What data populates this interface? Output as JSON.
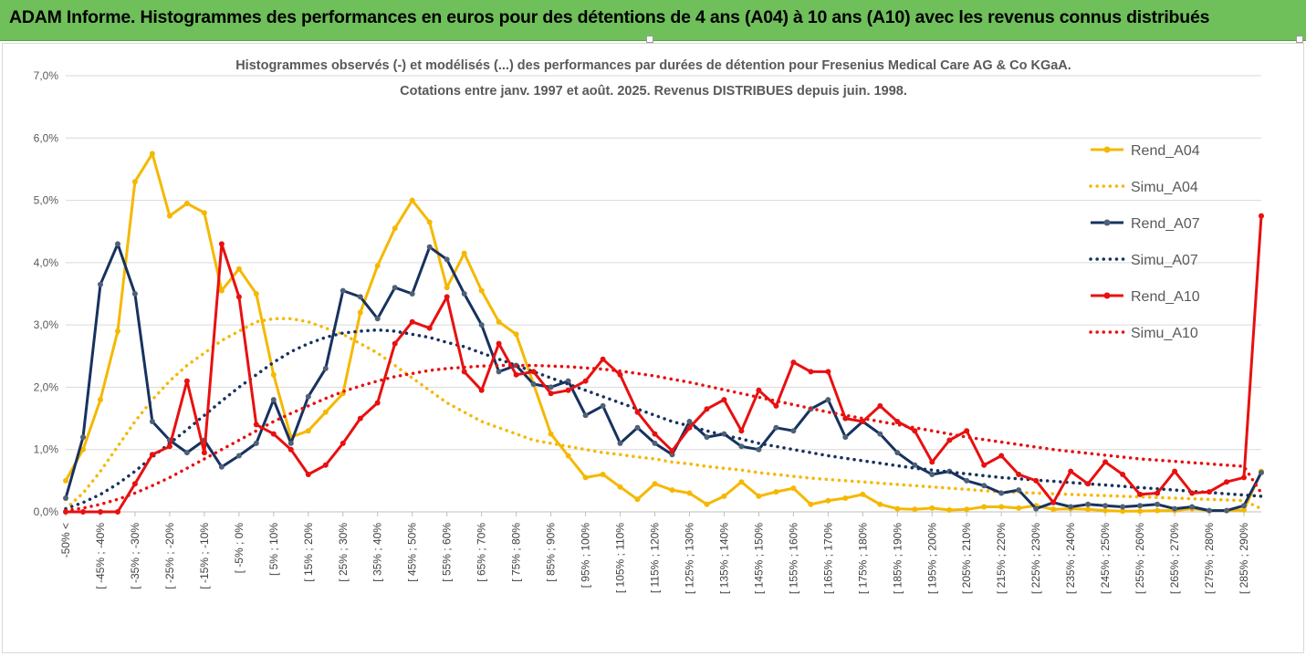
{
  "banner": {
    "title": "ADAM Informe. Histogrammes des performances en euros pour des détentions de 4 ans (A04) à 10 ans (A10) avec les revenus connus distribués"
  },
  "chart_data": {
    "type": "line",
    "title_line1": "Histogrammes observés (-) et modélisés (...) des performances par durées de détention pour Fresenius Medical Care AG & Co KGaA.",
    "title_line2": "Cotations entre janv. 1997 et août. 2025. Revenus DISTRIBUES depuis juin. 1998.",
    "y_ticks": [
      "0,0%",
      "1,0%",
      "2,0%",
      "3,0%",
      "4,0%",
      "5,0%",
      "6,0%",
      "7,0%"
    ],
    "ylim": [
      0,
      7
    ],
    "x_labels": [
      "-50% <",
      "[ -45% ; -40%",
      "[ -35% ; -30%",
      "[ -25% ; -20%",
      "[ -15% ; -10%",
      "[ -5% ; 0%",
      "[ 5% ; 10%",
      "[ 15% ; 20%",
      "[ 25% ; 30%",
      "[ 35% ; 40%",
      "[ 45% ; 50%",
      "[ 55% ; 60%",
      "[ 65% ; 70%",
      "[ 75% ; 80%",
      "[ 85% ; 90%",
      "[ 95% ; 100%",
      "[ 105% ; 110%",
      "[ 115% ; 120%",
      "[ 125% ; 130%",
      "[ 135% ; 140%",
      "[ 145% ; 150%",
      "[ 155% ; 160%",
      "[ 165% ; 170%",
      "[ 175% ; 180%",
      "[ 185% ; 190%",
      "[ 195% ; 200%",
      "[ 205% ; 210%",
      "[ 215% ; 220%",
      "[ 225% ; 230%",
      "[ 235% ; 240%",
      "[ 245% ; 250%",
      "[ 255% ; 260%",
      "[ 265% ; 270%",
      "[ 275% ; 280%",
      "[ 285% ; 290%"
    ],
    "num_points": 70,
    "grid": true,
    "legend_position": "right",
    "series": [
      {
        "name": "Rend_A04",
        "style": "solid",
        "color": "#f5b800",
        "values": [
          0.5,
          1.0,
          1.8,
          2.9,
          5.3,
          5.75,
          4.75,
          4.95,
          4.8,
          3.55,
          3.9,
          3.5,
          2.2,
          1.2,
          1.3,
          1.6,
          1.9,
          3.2,
          3.95,
          4.55,
          5.0,
          4.65,
          3.6,
          4.15,
          3.55,
          3.05,
          2.85,
          2.05,
          1.25,
          0.9,
          0.55,
          0.6,
          0.4,
          0.2,
          0.45,
          0.35,
          0.3,
          0.12,
          0.25,
          0.48,
          0.25,
          0.32,
          0.38,
          0.12,
          0.18,
          0.22,
          0.28,
          0.12,
          0.05,
          0.04,
          0.06,
          0.03,
          0.04,
          0.08,
          0.08,
          0.06,
          0.1,
          0.04,
          0.05,
          0.04,
          0.02,
          0.01,
          0.01,
          0.02,
          0.02,
          0.05,
          0.02,
          0.02,
          0.03,
          0.65
        ]
      },
      {
        "name": "Simu_A04",
        "style": "dotted",
        "color": "#f5b800",
        "values": [
          0.05,
          0.3,
          0.65,
          1.05,
          1.45,
          1.8,
          2.1,
          2.35,
          2.55,
          2.75,
          2.9,
          3.05,
          3.1,
          3.1,
          3.05,
          2.95,
          2.85,
          2.7,
          2.55,
          2.35,
          2.15,
          1.95,
          1.75,
          1.6,
          1.45,
          1.35,
          1.25,
          1.15,
          1.1,
          1.05,
          1.0,
          0.95,
          0.92,
          0.88,
          0.85,
          0.8,
          0.77,
          0.73,
          0.7,
          0.67,
          0.63,
          0.6,
          0.57,
          0.54,
          0.52,
          0.5,
          0.48,
          0.46,
          0.44,
          0.42,
          0.4,
          0.38,
          0.36,
          0.34,
          0.32,
          0.31,
          0.3,
          0.29,
          0.28,
          0.27,
          0.26,
          0.25,
          0.24,
          0.23,
          0.22,
          0.21,
          0.2,
          0.19,
          0.18,
          0.05
        ]
      },
      {
        "name": "Rend_A07",
        "style": "solid",
        "color": "#17325f",
        "values": [
          0.22,
          1.2,
          3.65,
          4.3,
          3.5,
          1.45,
          1.15,
          0.95,
          1.15,
          0.72,
          0.9,
          1.1,
          1.8,
          1.1,
          1.85,
          2.3,
          3.55,
          3.45,
          3.1,
          3.6,
          3.5,
          4.25,
          4.05,
          3.5,
          3.0,
          2.25,
          2.35,
          2.05,
          2.0,
          2.1,
          1.55,
          1.7,
          1.1,
          1.35,
          1.1,
          0.92,
          1.45,
          1.2,
          1.25,
          1.05,
          1.0,
          1.35,
          1.3,
          1.65,
          1.8,
          1.2,
          1.45,
          1.25,
          0.95,
          0.75,
          0.6,
          0.65,
          0.5,
          0.42,
          0.3,
          0.35,
          0.05,
          0.15,
          0.08,
          0.12,
          0.1,
          0.08,
          0.1,
          0.12,
          0.05,
          0.08,
          0.02,
          0.02,
          0.1,
          0.63
        ]
      },
      {
        "name": "Simu_A07",
        "style": "dotted",
        "color": "#17325f",
        "values": [
          0.05,
          0.15,
          0.28,
          0.45,
          0.65,
          0.88,
          1.1,
          1.32,
          1.55,
          1.78,
          2.0,
          2.2,
          2.4,
          2.57,
          2.7,
          2.8,
          2.87,
          2.9,
          2.92,
          2.9,
          2.85,
          2.8,
          2.72,
          2.65,
          2.55,
          2.45,
          2.35,
          2.25,
          2.15,
          2.05,
          1.95,
          1.85,
          1.75,
          1.65,
          1.55,
          1.45,
          1.38,
          1.3,
          1.23,
          1.17,
          1.1,
          1.05,
          1.0,
          0.95,
          0.9,
          0.86,
          0.82,
          0.78,
          0.74,
          0.7,
          0.67,
          0.64,
          0.61,
          0.58,
          0.55,
          0.53,
          0.51,
          0.49,
          0.47,
          0.45,
          0.43,
          0.41,
          0.39,
          0.37,
          0.35,
          0.33,
          0.31,
          0.29,
          0.27,
          0.25
        ]
      },
      {
        "name": "Rend_A10",
        "style": "solid",
        "color": "#e81010",
        "values": [
          0.0,
          0.0,
          0.0,
          0.0,
          0.45,
          0.92,
          1.05,
          2.1,
          0.95,
          4.3,
          3.45,
          1.4,
          1.25,
          1.0,
          0.6,
          0.75,
          1.1,
          1.5,
          1.75,
          2.7,
          3.05,
          2.95,
          3.45,
          2.25,
          1.95,
          2.7,
          2.2,
          2.25,
          1.9,
          1.95,
          2.1,
          2.45,
          2.2,
          1.6,
          1.25,
          0.98,
          1.35,
          1.65,
          1.8,
          1.3,
          1.95,
          1.7,
          2.4,
          2.25,
          2.25,
          1.5,
          1.45,
          1.7,
          1.45,
          1.3,
          0.8,
          1.15,
          1.3,
          0.75,
          0.9,
          0.6,
          0.5,
          0.15,
          0.65,
          0.45,
          0.8,
          0.6,
          0.28,
          0.3,
          0.65,
          0.3,
          0.32,
          0.48,
          0.55,
          4.75
        ]
      },
      {
        "name": "Simu_A10",
        "style": "dotted",
        "color": "#e81010",
        "values": [
          0.02,
          0.06,
          0.12,
          0.2,
          0.3,
          0.42,
          0.55,
          0.7,
          0.85,
          1.0,
          1.15,
          1.3,
          1.45,
          1.58,
          1.7,
          1.82,
          1.93,
          2.02,
          2.1,
          2.17,
          2.22,
          2.27,
          2.3,
          2.32,
          2.34,
          2.35,
          2.35,
          2.35,
          2.34,
          2.33,
          2.31,
          2.29,
          2.26,
          2.22,
          2.18,
          2.13,
          2.08,
          2.02,
          1.96,
          1.9,
          1.84,
          1.78,
          1.72,
          1.66,
          1.6,
          1.55,
          1.5,
          1.45,
          1.4,
          1.35,
          1.3,
          1.25,
          1.2,
          1.16,
          1.12,
          1.08,
          1.04,
          1.0,
          0.97,
          0.94,
          0.91,
          0.88,
          0.85,
          0.83,
          0.81,
          0.79,
          0.77,
          0.75,
          0.73,
          0.3
        ]
      }
    ]
  }
}
